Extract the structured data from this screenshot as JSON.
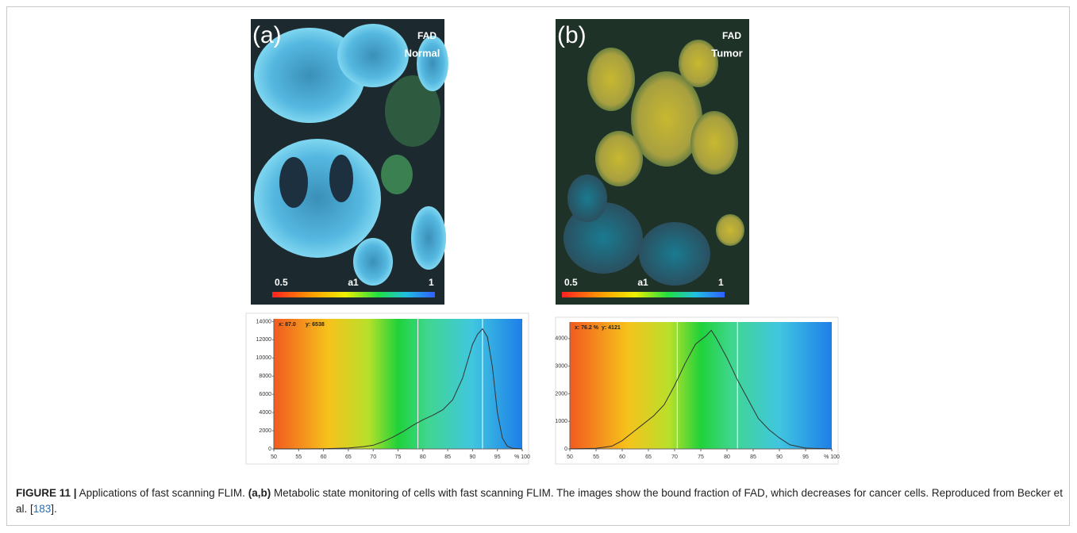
{
  "panels": [
    {
      "label": "(a)",
      "stain": "FAD",
      "condition": "Normal",
      "scale_min": "0.5",
      "scale_name": "a1",
      "scale_max": "1"
    },
    {
      "label": "(b)",
      "stain": "FAD",
      "condition": "Tumor",
      "scale_min": "0.5",
      "scale_name": "a1",
      "scale_max": "1"
    }
  ],
  "chart_data": [
    {
      "type": "line",
      "readout_x": "x: 87.0",
      "readout_y": "y: 6538",
      "x": [
        50,
        55,
        60,
        65,
        68,
        70,
        72,
        74,
        76,
        78,
        80,
        82,
        84,
        86,
        88,
        90,
        91,
        92,
        93,
        94,
        95,
        96,
        97,
        98,
        100
      ],
      "series": [
        {
          "color": "#333333",
          "values": [
            0,
            0,
            20,
            100,
            250,
            400,
            800,
            1300,
            1900,
            2600,
            3200,
            3700,
            4300,
            5400,
            7800,
            11500,
            12600,
            13200,
            12300,
            9000,
            4000,
            1200,
            300,
            80,
            0
          ]
        }
      ],
      "xlim": [
        50,
        100
      ],
      "xticks": [
        50,
        55,
        60,
        65,
        70,
        75,
        80,
        85,
        90,
        95,
        {
          "value": 100,
          "label": "% 100"
        }
      ],
      "ylim": [
        0,
        14300
      ],
      "yticks": [
        0,
        2000,
        4000,
        6000,
        8000,
        10000,
        12000,
        14000
      ],
      "cursor_lines": [
        79,
        92
      ]
    },
    {
      "type": "line",
      "readout_x": "x: 76.2 %",
      "readout_y": "y: 4121",
      "x": [
        50,
        55,
        58,
        60,
        62,
        64,
        66,
        68,
        70,
        72,
        74,
        76,
        77,
        78,
        80,
        82,
        84,
        86,
        88,
        90,
        92,
        95,
        100
      ],
      "series": [
        {
          "color": "#333333",
          "values": [
            0,
            20,
            100,
            300,
            600,
            900,
            1200,
            1600,
            2300,
            3100,
            3800,
            4100,
            4300,
            4000,
            3300,
            2500,
            1800,
            1100,
            700,
            400,
            150,
            30,
            0
          ]
        }
      ],
      "xlim": [
        50,
        100
      ],
      "xticks": [
        50,
        55,
        60,
        65,
        70,
        75,
        80,
        85,
        90,
        95,
        {
          "value": 100,
          "label": "% 100"
        }
      ],
      "ylim": [
        0,
        4600
      ],
      "yticks": [
        0,
        1000,
        2000,
        3000,
        4000
      ],
      "cursor_lines": [
        70.5,
        82
      ]
    }
  ],
  "caption": {
    "figure": "FIGURE 11 |",
    "title": "Applications of fast scanning FLIM.",
    "panels": "(a,b)",
    "text": "Metabolic state monitoring of cells with fast scanning FLIM. The images show the bound fraction of FAD, which decreases for cancer cells. Reproduced from Becker et al. [",
    "ref": "183",
    "end": "]."
  }
}
